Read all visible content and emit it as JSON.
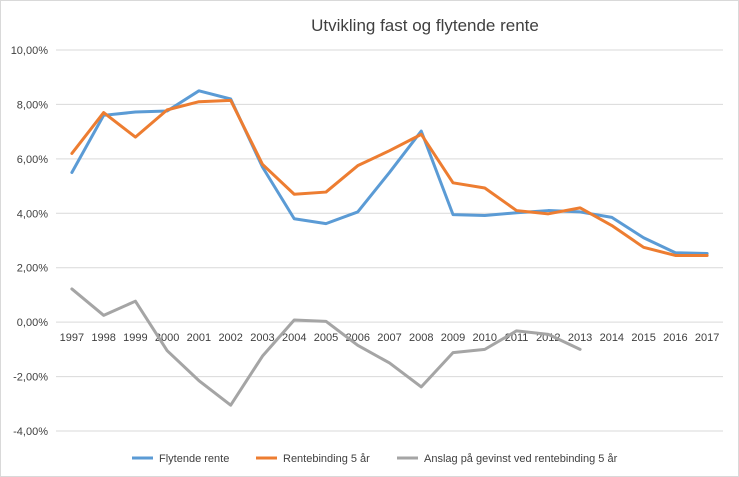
{
  "chart_data": {
    "type": "line",
    "title": "Utvikling fast og flytende rente",
    "xlabel": "",
    "ylabel": "",
    "ylim": [
      -0.04,
      0.1
    ],
    "ytick_step": 0.02,
    "y_tick_labels": [
      "-4,00%",
      "-2,00%",
      "0,00%",
      "2,00%",
      "4,00%",
      "6,00%",
      "8,00%",
      "10,00%"
    ],
    "grid": true,
    "legend_position": "bottom",
    "categories": [
      "1997",
      "1998",
      "1999",
      "2000",
      "2001",
      "2002",
      "2003",
      "2004",
      "2005",
      "2006",
      "2007",
      "2008",
      "2009",
      "2010",
      "2011",
      "2012",
      "2013",
      "2014",
      "2015",
      "2016",
      "2017"
    ],
    "series": [
      {
        "name": "Flytende rente",
        "color": "#5b9bd5",
        "values": [
          0.055,
          0.076,
          0.0772,
          0.0776,
          0.085,
          0.082,
          0.057,
          0.038,
          0.0362,
          0.0405,
          0.055,
          0.0702,
          0.0395,
          0.0392,
          0.0402,
          0.041,
          0.0405,
          0.0385,
          0.031,
          0.0255,
          0.0252
        ]
      },
      {
        "name": "Rentebinding 5 år",
        "color": "#ed7d31",
        "values": [
          0.062,
          0.077,
          0.068,
          0.078,
          0.081,
          0.0815,
          0.058,
          0.047,
          0.0478,
          0.0575,
          0.063,
          0.069,
          0.0512,
          0.0493,
          0.041,
          0.0398,
          0.042,
          0.0355,
          0.0275,
          0.0245,
          0.0245
        ]
      },
      {
        "name": "Anslag på gevinst ved rentebinding 5 år",
        "color": "#a5a5a5",
        "values": [
          0.0122,
          0.0025,
          0.0077,
          -0.0105,
          -0.0215,
          -0.0305,
          -0.0125,
          0.0008,
          0.0003,
          -0.0085,
          -0.015,
          -0.0238,
          -0.0112,
          -0.01,
          -0.0032,
          -0.0045,
          -0.01,
          null,
          null,
          null,
          null
        ]
      }
    ]
  }
}
